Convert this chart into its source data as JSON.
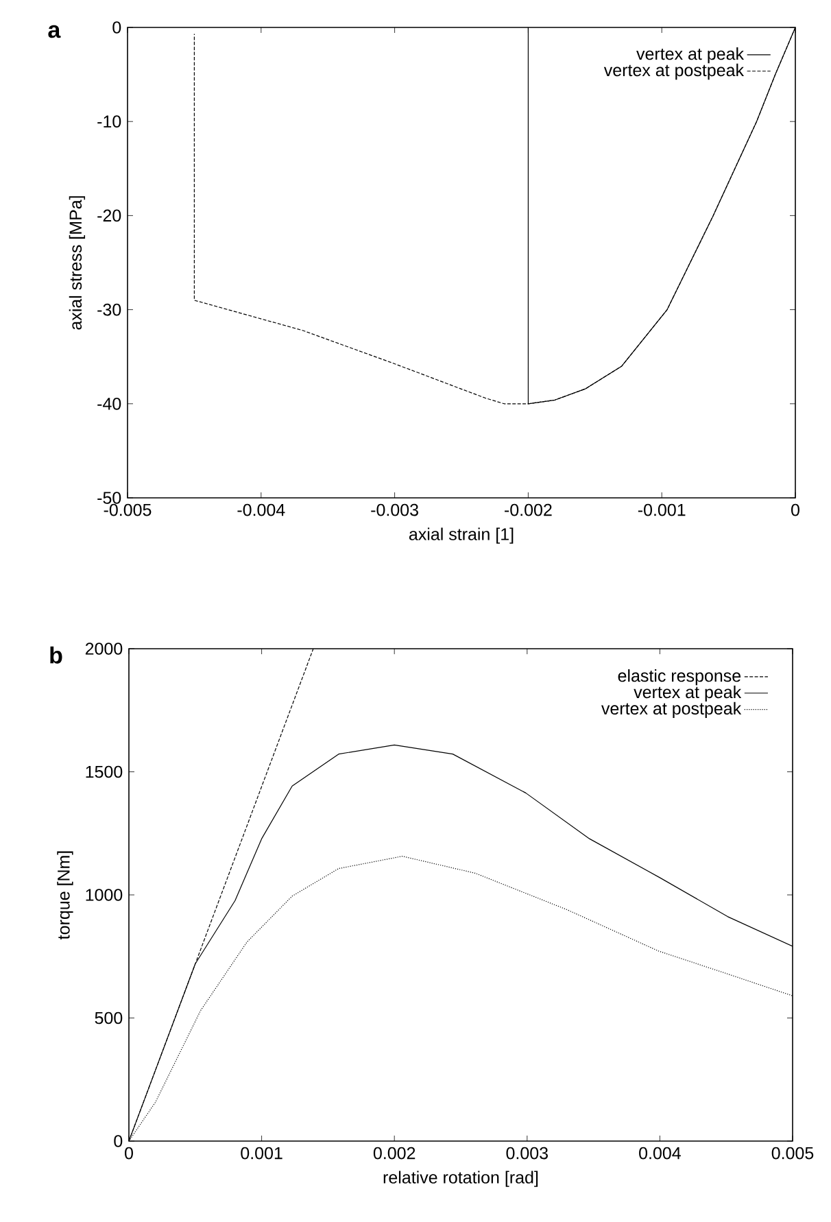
{
  "chart_data": [
    {
      "type": "line",
      "title": "a",
      "xlabel": "axial strain [1]",
      "ylabel": "axial stress [MPa]",
      "xlim": [
        -0.005,
        0
      ],
      "ylim": [
        -50,
        0
      ],
      "xticks": [
        -0.005,
        -0.004,
        -0.003,
        -0.002,
        -0.001,
        0
      ],
      "yticks": [
        -50,
        -40,
        -30,
        -20,
        -10,
        0
      ],
      "legend": "top right",
      "series": [
        {
          "name": "vertex at peak",
          "color": "#000000",
          "line_style": "solid",
          "x": [
            0,
            -0.00015,
            -0.00029,
            -0.000615,
            -0.00096,
            -0.0013,
            -0.00157,
            -0.0018,
            -0.002,
            -0.002
          ],
          "values": [
            0,
            -5,
            -10,
            -20,
            -30,
            -36,
            -38.4,
            -39.6,
            -40,
            0
          ]
        },
        {
          "name": "vertex at postpeak",
          "color": "#000000",
          "line_style": "dashed",
          "x": [
            0,
            -0.00015,
            -0.00029,
            -0.000615,
            -0.00096,
            -0.0013,
            -0.00157,
            -0.0018,
            -0.002,
            -0.00218,
            -0.00232,
            -0.00301,
            -0.00369,
            -0.0045,
            -0.0045
          ],
          "values": [
            0,
            -5,
            -10,
            -20,
            -30,
            -36,
            -38.4,
            -39.6,
            -40,
            -40,
            -39.4,
            -35.7,
            -32.2,
            -29,
            -0.7
          ]
        }
      ]
    },
    {
      "type": "line",
      "title": "b",
      "xlabel": "relative rotation [rad]",
      "ylabel": "torque [Nm]",
      "xlim": [
        0,
        0.005
      ],
      "ylim": [
        0,
        2000
      ],
      "xticks": [
        0,
        0.001,
        0.002,
        0.003,
        0.004,
        0.005
      ],
      "yticks": [
        0,
        500,
        1000,
        1500,
        2000
      ],
      "legend": "top right",
      "series": [
        {
          "name": "elastic response",
          "color": "#000000",
          "line_style": "dashed",
          "x": [
            0,
            0.001389
          ],
          "values": [
            0,
            2000
          ]
        },
        {
          "name": "vertex at peak",
          "color": "#000000",
          "line_style": "solid",
          "x": [
            0,
            0.0002,
            0.0005,
            0.0008,
            0.001,
            0.00123,
            0.00158,
            0.002,
            0.00244,
            0.00299,
            0.00347,
            0.004,
            0.00451,
            0.005
          ],
          "values": [
            0,
            288,
            720,
            977,
            1228,
            1442,
            1572,
            1609,
            1572,
            1414,
            1228,
            1070,
            912,
            791
          ]
        },
        {
          "name": "vertex at postpeak",
          "color": "#000000",
          "line_style": "dotted",
          "x": [
            0,
            0.0002,
            0.00054,
            0.00089,
            0.00123,
            0.00158,
            0.00206,
            0.00261,
            0.0033,
            0.00399,
            0.00451,
            0.005
          ],
          "values": [
            0,
            158,
            530,
            809,
            995,
            1107,
            1157,
            1088,
            940,
            772,
            679,
            590
          ]
        }
      ]
    }
  ]
}
